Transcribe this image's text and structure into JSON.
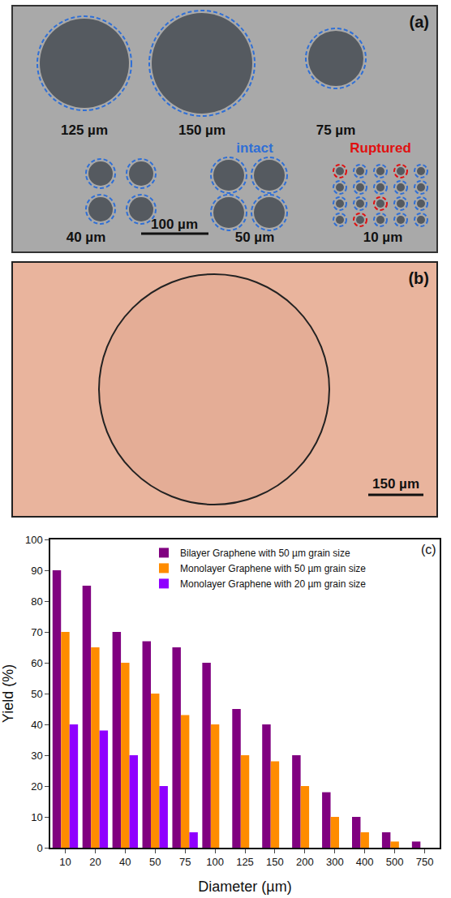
{
  "panel_a": {
    "label": "(a)",
    "large_circles": [
      "125 µm",
      "150 µm",
      "75 µm"
    ],
    "groups": [
      "40 µm",
      "50 µm",
      "10 µm"
    ],
    "scale_bar": "100 µm",
    "intact": "intact",
    "ruptured": "Ruptured"
  },
  "panel_b": {
    "label": "(b)",
    "scale_bar": "150 µm"
  },
  "chart_data": {
    "type": "bar",
    "annotations": [
      "(c)"
    ],
    "x_label": "Diameter (µm)",
    "y_label": "Yield (%)",
    "categories": [
      "10",
      "20",
      "40",
      "50",
      "75",
      "100",
      "125",
      "150",
      "200",
      "300",
      "400",
      "500",
      "750"
    ],
    "series": [
      {
        "name": "Bilayer Graphene with 50 µm grain size",
        "color": "#800080",
        "values": [
          90,
          85,
          70,
          67,
          65,
          60,
          45,
          40,
          30,
          18,
          10,
          5,
          2
        ]
      },
      {
        "name": "Monolayer Graphene with 50 µm grain size",
        "color": "#ff8c00",
        "values": [
          70,
          65,
          60,
          50,
          43,
          40,
          30,
          28,
          20,
          10,
          5,
          2,
          null
        ]
      },
      {
        "name": "Monolayer Graphene with 20 µm grain size",
        "color": "#8f00ff",
        "values": [
          40,
          38,
          30,
          20,
          5,
          null,
          null,
          null,
          null,
          null,
          null,
          null,
          null
        ]
      }
    ],
    "ylim": [
      0,
      100
    ],
    "yticks": [
      0,
      10,
      20,
      30,
      40,
      50,
      60,
      70,
      80,
      90,
      100
    ],
    "grid": false,
    "legend": "top"
  }
}
